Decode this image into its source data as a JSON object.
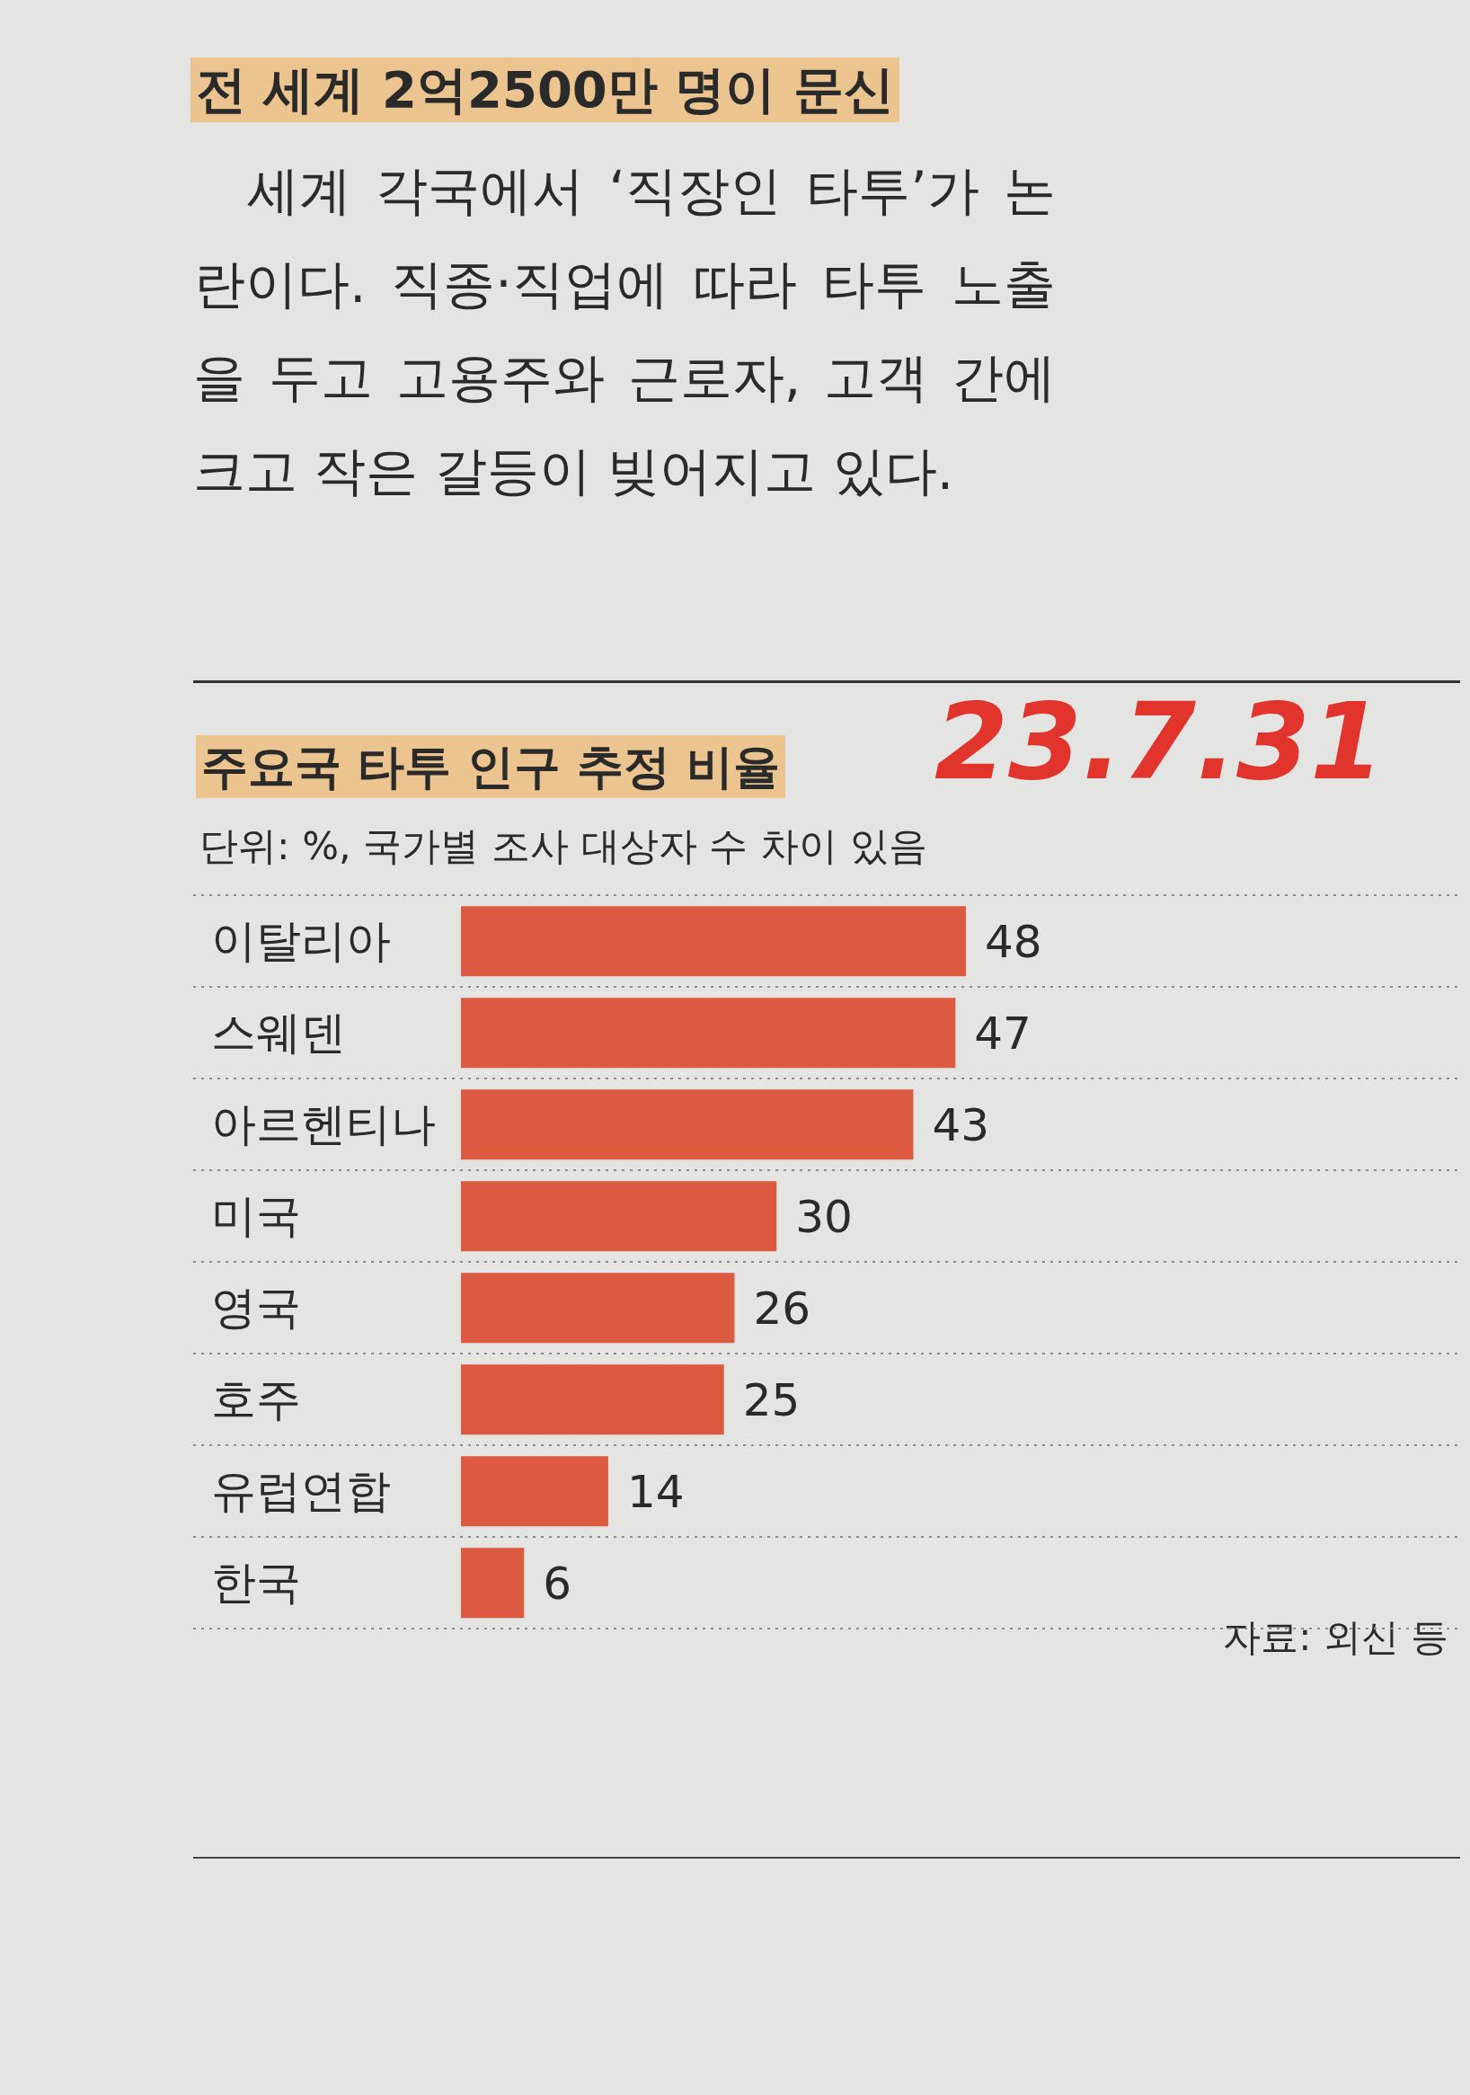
{
  "chart_data": {
    "type": "bar",
    "orientation": "horizontal",
    "title": "주요국 타투 인구 추정 비율",
    "subtitle": "단위: %, 국가별 조사 대상자 수 차이 있음",
    "categories": [
      "이탈리아",
      "스웨덴",
      "아르헨티나",
      "미국",
      "영국",
      "호주",
      "유럽연합",
      "한국"
    ],
    "values": [
      48,
      47,
      43,
      30,
      26,
      25,
      14,
      6
    ],
    "color": "#dc5a40",
    "data_labels": true,
    "grid": "y",
    "annotations": [
      "전 세계 2억2500만 명이 문신",
      "세계 각국에서 ‘직장인 타투’가 논란이다. 직종·직업에 따라 타투 노출을 두고 고용주와 근로자, 고객 간에 크고 작은 갈등이 빚어지고 있다.",
      "23.7.31",
      "자료: 외신 등"
    ]
  }
}
